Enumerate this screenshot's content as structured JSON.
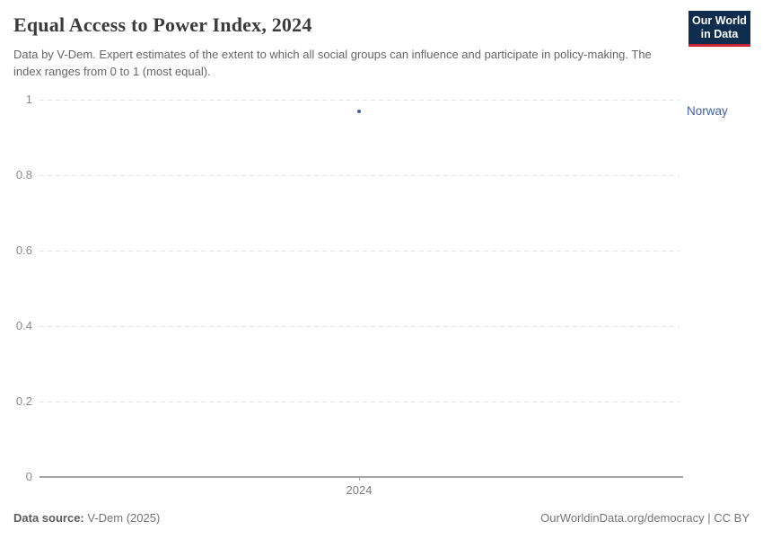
{
  "header": {
    "title": "Equal Access to Power Index, 2024",
    "subtitle": "Data by V-Dem. Expert estimates of the extent to which all social groups can influence and participate in policy-making. The index ranges from 0 to 1 (most equal).",
    "logo": {
      "line1": "Our World",
      "line2": "in Data",
      "bg_color": "#0f2d4e",
      "accent_color": "#cf2437"
    }
  },
  "footer": {
    "source_label": "Data source:",
    "source_value": " V-Dem (2025)",
    "link": "OurWorldinData.org/democracy | CC BY"
  },
  "chart_data": {
    "type": "scatter",
    "title": "Equal Access to Power Index, 2024",
    "x": [
      2024
    ],
    "series": [
      {
        "name": "Norway",
        "values": [
          0.97
        ],
        "color": "#4161a8"
      }
    ],
    "xlabel": "",
    "ylabel": "",
    "ylim": [
      0,
      1
    ],
    "yticks": [
      0,
      0.2,
      0.4,
      0.6,
      0.8,
      1
    ],
    "xticks": [
      2024
    ],
    "grid": "dashed-horizontal",
    "legend": "entity-label-right"
  }
}
